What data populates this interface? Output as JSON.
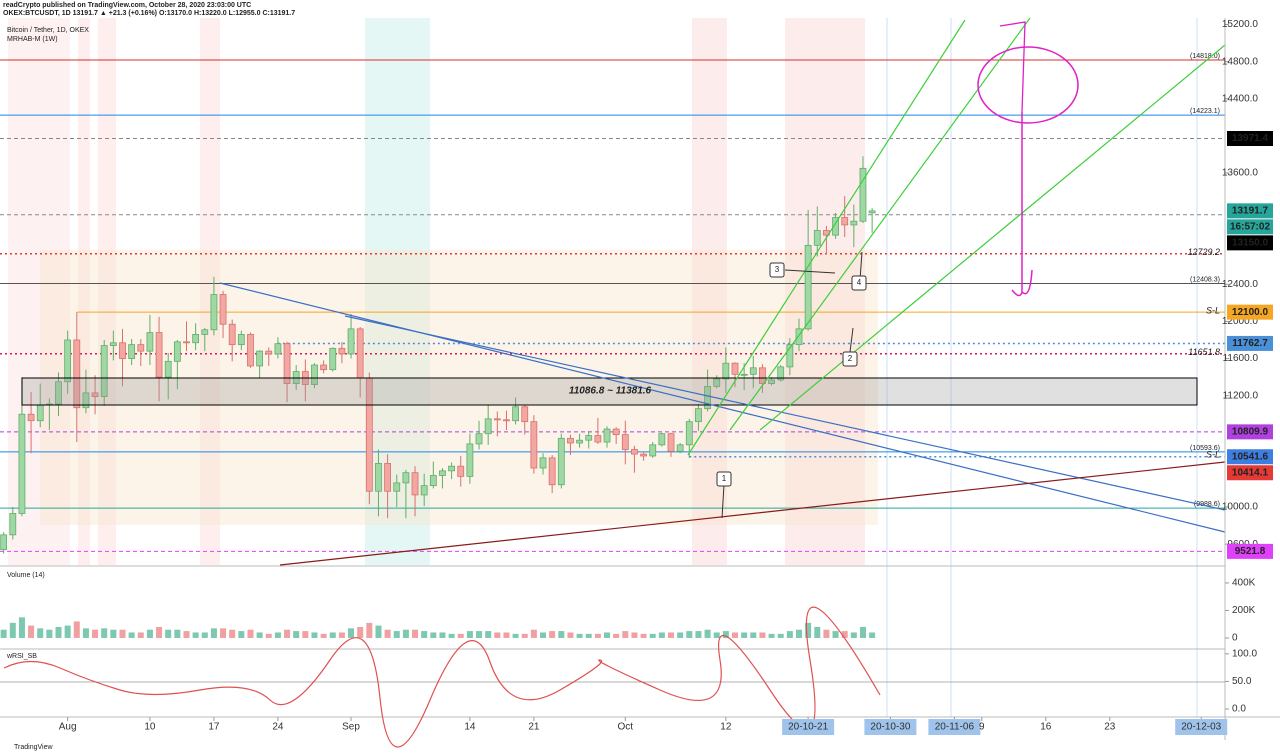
{
  "header": {
    "line1": "readCrypto published on TradingView.com, October 28, 2020 23:03:00 UTC",
    "line2": "OKEX:BTCUSDT, 1D  13191.7 ▲ +21.3 (+0.16%) O:13170.0 H:13220.0 L:12955.0 C:13191.7"
  },
  "footer": "TradingView",
  "chart_data": {
    "type": "candlestick",
    "title": "Bitcoin / Tether, 1D, OKEX",
    "subtitle": "MRHAB-M (1W)",
    "up_color": "#9fd8a4",
    "up_edge": "#5fae68",
    "down_color": "#f3a7a3",
    "down_edge": "#d9706a",
    "candles": [
      [
        9540,
        9730,
        9500,
        9700
      ],
      [
        9700,
        10000,
        9650,
        9930
      ],
      [
        9930,
        11400,
        9900,
        11000
      ],
      [
        11000,
        11240,
        10580,
        10930
      ],
      [
        10930,
        11330,
        10860,
        11100
      ],
      [
        11100,
        11170,
        10830,
        11110
      ],
      [
        11110,
        11450,
        10980,
        11350
      ],
      [
        11350,
        11900,
        11220,
        11800
      ],
      [
        11800,
        12100,
        10700,
        11070
      ],
      [
        11070,
        11480,
        11010,
        11230
      ],
      [
        11230,
        11420,
        11000,
        11190
      ],
      [
        11190,
        11800,
        11090,
        11740
      ],
      [
        11740,
        11900,
        11580,
        11770
      ],
      [
        11770,
        11920,
        11300,
        11600
      ],
      [
        11600,
        11810,
        11530,
        11750
      ],
      [
        11750,
        11810,
        11520,
        11680
      ],
      [
        11680,
        12070,
        11530,
        11880
      ],
      [
        11880,
        12050,
        11140,
        11400
      ],
      [
        11400,
        11660,
        11160,
        11570
      ],
      [
        11570,
        11800,
        11270,
        11780
      ],
      [
        11780,
        12000,
        11680,
        11770
      ],
      [
        11770,
        11980,
        11690,
        11860
      ],
      [
        11860,
        11930,
        11680,
        11910
      ],
      [
        11910,
        12480,
        11850,
        12290
      ],
      [
        12290,
        12330,
        11820,
        11970
      ],
      [
        11970,
        12020,
        11570,
        11750
      ],
      [
        11750,
        11900,
        11690,
        11860
      ],
      [
        11860,
        11880,
        11500,
        11520
      ],
      [
        11520,
        11690,
        11390,
        11680
      ],
      [
        11680,
        11720,
        11520,
        11650
      ],
      [
        11650,
        11830,
        11600,
        11760
      ],
      [
        11760,
        11780,
        11130,
        11330
      ],
      [
        11330,
        11530,
        11260,
        11460
      ],
      [
        11460,
        11590,
        11140,
        11320
      ],
      [
        11320,
        11550,
        11280,
        11530
      ],
      [
        11530,
        11580,
        11440,
        11480
      ],
      [
        11480,
        11720,
        11460,
        11710
      ],
      [
        11710,
        11780,
        11550,
        11650
      ],
      [
        11650,
        12080,
        11600,
        11920
      ],
      [
        11920,
        11940,
        11180,
        11390
      ],
      [
        11390,
        11450,
        10030,
        10170
      ],
      [
        10170,
        10620,
        9900,
        10470
      ],
      [
        10470,
        10570,
        9880,
        10170
      ],
      [
        10170,
        10350,
        10000,
        10260
      ],
      [
        10260,
        10400,
        9880,
        10370
      ],
      [
        10370,
        10440,
        9900,
        10130
      ],
      [
        10130,
        10360,
        10010,
        10230
      ],
      [
        10230,
        10490,
        10200,
        10340
      ],
      [
        10340,
        10420,
        10200,
        10390
      ],
      [
        10390,
        10480,
        10300,
        10440
      ],
      [
        10440,
        10550,
        10220,
        10330
      ],
      [
        10330,
        10790,
        10250,
        10680
      ],
      [
        10680,
        10930,
        10620,
        10790
      ],
      [
        10790,
        11100,
        10670,
        10950
      ],
      [
        10950,
        11030,
        10760,
        10940
      ],
      [
        10940,
        11040,
        10830,
        10930
      ],
      [
        10930,
        11180,
        10890,
        11080
      ],
      [
        11080,
        11100,
        10780,
        10920
      ],
      [
        10920,
        10990,
        10360,
        10420
      ],
      [
        10420,
        10580,
        10350,
        10530
      ],
      [
        10530,
        10560,
        10150,
        10240
      ],
      [
        10240,
        10790,
        10200,
        10740
      ],
      [
        10740,
        10780,
        10560,
        10690
      ],
      [
        10690,
        10790,
        10640,
        10720
      ],
      [
        10720,
        10820,
        10630,
        10770
      ],
      [
        10770,
        10960,
        10680,
        10700
      ],
      [
        10700,
        10870,
        10640,
        10840
      ],
      [
        10840,
        10860,
        10680,
        10780
      ],
      [
        10780,
        10930,
        10460,
        10620
      ],
      [
        10620,
        10660,
        10370,
        10570
      ],
      [
        10570,
        10600,
        10500,
        10550
      ],
      [
        10550,
        10700,
        10530,
        10670
      ],
      [
        10670,
        10800,
        10650,
        10790
      ],
      [
        10790,
        10800,
        10540,
        10600
      ],
      [
        10600,
        10690,
        10580,
        10670
      ],
      [
        10670,
        10950,
        10530,
        10920
      ],
      [
        10920,
        11110,
        10820,
        11060
      ],
      [
        11060,
        11480,
        11030,
        11300
      ],
      [
        11300,
        11420,
        11280,
        11380
      ],
      [
        11380,
        11720,
        11230,
        11550
      ],
      [
        11550,
        11560,
        11290,
        11430
      ],
      [
        11430,
        11550,
        11260,
        11430
      ],
      [
        11430,
        11630,
        11280,
        11500
      ],
      [
        11500,
        11540,
        11230,
        11330
      ],
      [
        11330,
        11400,
        11310,
        11370
      ],
      [
        11370,
        11530,
        11350,
        11510
      ],
      [
        11510,
        11820,
        11420,
        11750
      ],
      [
        11750,
        12030,
        11680,
        11920
      ],
      [
        11920,
        13200,
        11900,
        12820
      ],
      [
        12820,
        13240,
        12700,
        12980
      ],
      [
        12980,
        13030,
        12720,
        12930
      ],
      [
        12930,
        13170,
        12890,
        13120
      ],
      [
        13120,
        13350,
        12910,
        13040
      ],
      [
        13040,
        13260,
        12800,
        13080
      ],
      [
        13080,
        13780,
        13060,
        13650
      ],
      [
        13170,
        13220,
        12955,
        13191.7
      ]
    ],
    "ylim": [
      9375,
      15270
    ],
    "yticks": [
      {
        "value": 9600,
        "label": "9600.0"
      },
      {
        "value": 10000,
        "label": "10000.0"
      },
      {
        "value": 11200,
        "label": "11200.0"
      },
      {
        "value": 11600,
        "label": "11600.0"
      },
      {
        "value": 12000,
        "label": "12000.0"
      },
      {
        "value": 12400,
        "label": "12400.0"
      },
      {
        "value": 13600,
        "label": "13600.0"
      },
      {
        "value": 14400,
        "label": "14400.0"
      },
      {
        "value": 14800,
        "label": "14800.0"
      },
      {
        "value": 15200,
        "label": "15200.0"
      }
    ],
    "xlim": [
      -0.4,
      133.6
    ],
    "xticks": [
      {
        "value": 7,
        "label": "Aug"
      },
      {
        "value": 16,
        "label": "10"
      },
      {
        "value": 23,
        "label": "17"
      },
      {
        "value": 30,
        "label": "24"
      },
      {
        "value": 38,
        "label": "Sep"
      },
      {
        "value": 51,
        "label": "14"
      },
      {
        "value": 58,
        "label": "21"
      },
      {
        "value": 68,
        "label": "Oct"
      },
      {
        "value": 79,
        "label": "12"
      },
      {
        "value": 88,
        "label": "20-10-21",
        "highlight": true
      },
      {
        "value": 97,
        "label": "20-10-30",
        "highlight": true
      },
      {
        "value": 104,
        "label": "20-11-06",
        "highlight": true
      },
      {
        "value": 107,
        "label": "9"
      },
      {
        "value": 114,
        "label": "16"
      },
      {
        "value": 121,
        "label": "23"
      },
      {
        "value": 131,
        "label": "20-12-03",
        "highlight": true
      }
    ],
    "levels": [
      {
        "value": 14818,
        "color": "#d32f2f",
        "style": "solid",
        "note": "(14818.0)"
      },
      {
        "value": 14223.1,
        "color": "#1e88e5",
        "style": "solid",
        "note": "(14223.1)"
      },
      {
        "value": 13971.4,
        "color": "#888888",
        "style": "dashed",
        "tag": "#000000"
      },
      {
        "value": 13191.7,
        "color": "#26a69a",
        "style": "none",
        "tag": "#26a69a",
        "last": true
      },
      {
        "value": 13150,
        "label": "13150.0",
        "color": "#888888",
        "style": "dashed",
        "tag": "#000000"
      },
      {
        "value": 12729.2,
        "color": "#e53935",
        "style": "dotted",
        "inline": true
      },
      {
        "value": 12408.3,
        "color": "#555555",
        "style": "solid",
        "note": "(12408.3)"
      },
      {
        "value": 12100,
        "label": "12100.0",
        "color": "#f5a623",
        "style": "solid",
        "from": 8,
        "tag": "#f5a623"
      },
      {
        "value": 11762.7,
        "color": "#4a90d9",
        "style": "dotted",
        "from": 30,
        "tag": "#4a90d9"
      },
      {
        "value": 11651.8,
        "color": "#d81b60",
        "style": "dotted",
        "inline": true
      },
      {
        "value": 10809.9,
        "color": "#b040e0",
        "style": "dashed",
        "tag": "#b040e0"
      },
      {
        "value": 10593.6,
        "color": "#1e88e5",
        "style": "solid",
        "note": "(10593.6)"
      },
      {
        "value": 10541.6,
        "color": "#4a90d9",
        "style": "dotted",
        "from": 75,
        "tag": "#3d7fe0"
      },
      {
        "value": 10414.1,
        "color": "#e53935",
        "style": "none",
        "tag": "#e53935"
      },
      {
        "value": 9988.6,
        "color": "#26a69a",
        "style": "solid",
        "note": "(9988.6)"
      },
      {
        "value": 9521.8,
        "color": "#e040fb",
        "style": "dashed",
        "tag": "#e040fb"
      }
    ],
    "countdown": "16:57:02",
    "annotations": {
      "box": "11086.8 ~ 11381.6",
      "sl_upper": "S-L",
      "sl_lower": "S-L",
      "c1": "1",
      "c2": "2",
      "c3": "3",
      "c4": "4"
    },
    "volume": {
      "title": "Volume (14)",
      "values": [
        60000,
        110000,
        150000,
        90000,
        70000,
        60000,
        80000,
        90000,
        120000,
        70000,
        60000,
        70000,
        60000,
        60000,
        40000,
        40000,
        60000,
        80000,
        60000,
        60000,
        50000,
        40000,
        40000,
        70000,
        70000,
        60000,
        50000,
        60000,
        40000,
        30000,
        40000,
        60000,
        50000,
        50000,
        40000,
        30000,
        40000,
        40000,
        70000,
        80000,
        110000,
        90000,
        60000,
        50000,
        60000,
        60000,
        50000,
        40000,
        40000,
        30000,
        30000,
        50000,
        50000,
        50000,
        40000,
        40000,
        30000,
        30000,
        60000,
        40000,
        50000,
        50000,
        40000,
        30000,
        30000,
        30000,
        40000,
        30000,
        50000,
        40000,
        30000,
        30000,
        40000,
        40000,
        40000,
        50000,
        50000,
        60000,
        40000,
        50000,
        40000,
        40000,
        40000,
        40000,
        30000,
        30000,
        50000,
        60000,
        110000,
        80000,
        60000,
        50000,
        50000,
        40000,
        80000,
        40000
      ],
      "ylim": [
        -73000,
        516000
      ],
      "yticks": [
        {
          "value": 0,
          "label": "0"
        },
        {
          "value": 200000,
          "label": "200K"
        },
        {
          "value": 400000,
          "label": "400K"
        }
      ]
    },
    "rsi": {
      "title": "wRSI_SB",
      "ylim": [
        -14.5,
        107
      ],
      "yticks": [
        {
          "value": 0,
          "label": "0.0"
        },
        {
          "value": 50,
          "label": "50.0"
        },
        {
          "value": 100,
          "label": "100.0"
        }
      ]
    }
  }
}
